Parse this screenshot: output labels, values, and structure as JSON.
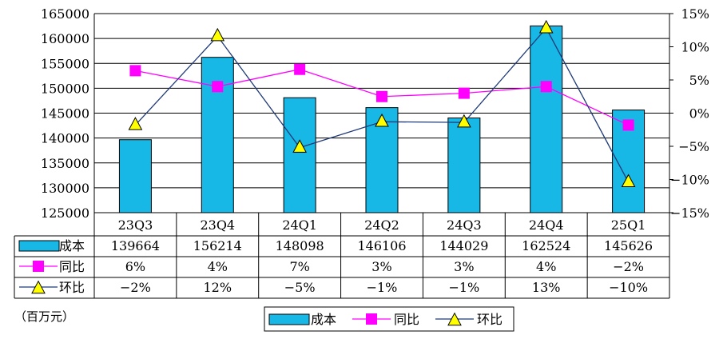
{
  "chart_data": {
    "type": "bar",
    "categories": [
      "23Q3",
      "23Q4",
      "24Q1",
      "24Q2",
      "24Q3",
      "24Q4",
      "25Q1"
    ],
    "series": [
      {
        "name": "成本",
        "kind": "bar",
        "axis": "left",
        "color": "#17B7E6",
        "values": [
          139664,
          156214,
          148098,
          146106,
          144029,
          162524,
          145626
        ],
        "table_labels": [
          "139664",
          "156214",
          "148098",
          "146106",
          "144029",
          "162524",
          "145626"
        ]
      },
      {
        "name": "同比",
        "kind": "line",
        "axis": "right",
        "color": "#FF00FF",
        "marker": "square",
        "values": [
          6.4,
          4.0,
          6.6,
          2.5,
          3.0,
          4.0,
          -1.8
        ],
        "table_labels": [
          "6%",
          "4%",
          "7%",
          "3%",
          "3%",
          "4%",
          "-2%"
        ]
      },
      {
        "name": "环比",
        "kind": "line",
        "axis": "right",
        "color": "#1F3A78",
        "marker": "triangle",
        "marker_color": "#FFFF00",
        "values": [
          -1.8,
          11.6,
          -5.2,
          -1.3,
          -1.4,
          12.8,
          -10.4
        ],
        "table_labels": [
          "-2%",
          "12%",
          "-5%",
          "-1%",
          "-1%",
          "13%",
          "-10%"
        ]
      }
    ],
    "y_left": {
      "min": 125000,
      "max": 165000,
      "step": 5000,
      "ticks": [
        "125000",
        "130000",
        "135000",
        "140000",
        "145000",
        "150000",
        "155000",
        "160000",
        "165000"
      ]
    },
    "y_right": {
      "min": -15,
      "max": 15,
      "step": 5,
      "ticks": [
        "-15%",
        "-10%",
        "-5%",
        "0%",
        "5%",
        "10%",
        "15%"
      ]
    },
    "grid": true,
    "legend_position": "bottom",
    "unit_label": "（百万元）"
  }
}
